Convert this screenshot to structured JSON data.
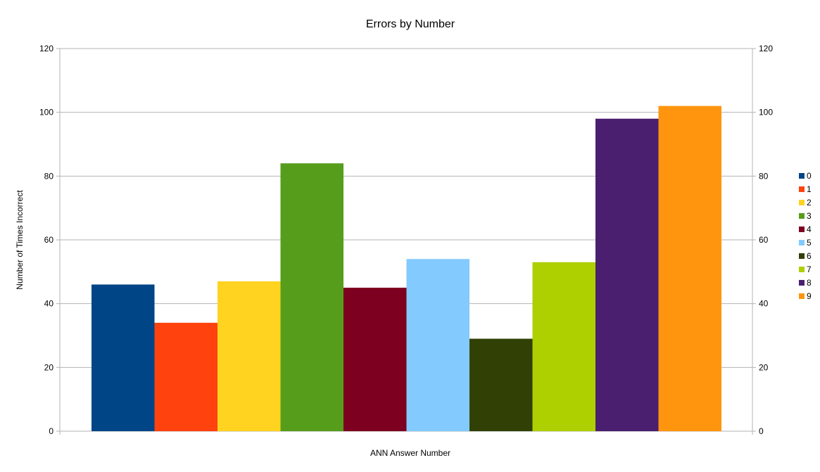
{
  "chart_data": {
    "type": "bar",
    "title": "Errors by Number",
    "xlabel": "ANN Answer Number",
    "ylabel": "Number of Times Incorrect",
    "ylim": [
      0,
      120
    ],
    "yticks": [
      0,
      20,
      40,
      60,
      80,
      100,
      120
    ],
    "grid": true,
    "legend_position": "right",
    "categories": [
      ""
    ],
    "series": [
      {
        "name": "0",
        "values": [
          46
        ],
        "color": "#004586"
      },
      {
        "name": "1",
        "values": [
          34
        ],
        "color": "#ff420e"
      },
      {
        "name": "2",
        "values": [
          47
        ],
        "color": "#ffd320"
      },
      {
        "name": "3",
        "values": [
          84
        ],
        "color": "#579d1c"
      },
      {
        "name": "4",
        "values": [
          45
        ],
        "color": "#7e0021"
      },
      {
        "name": "5",
        "values": [
          54
        ],
        "color": "#83caff"
      },
      {
        "name": "6",
        "values": [
          29
        ],
        "color": "#314004"
      },
      {
        "name": "7",
        "values": [
          53
        ],
        "color": "#aecf00"
      },
      {
        "name": "8",
        "values": [
          98
        ],
        "color": "#4b1f6f"
      },
      {
        "name": "9",
        "values": [
          102
        ],
        "color": "#ff950e"
      }
    ]
  }
}
